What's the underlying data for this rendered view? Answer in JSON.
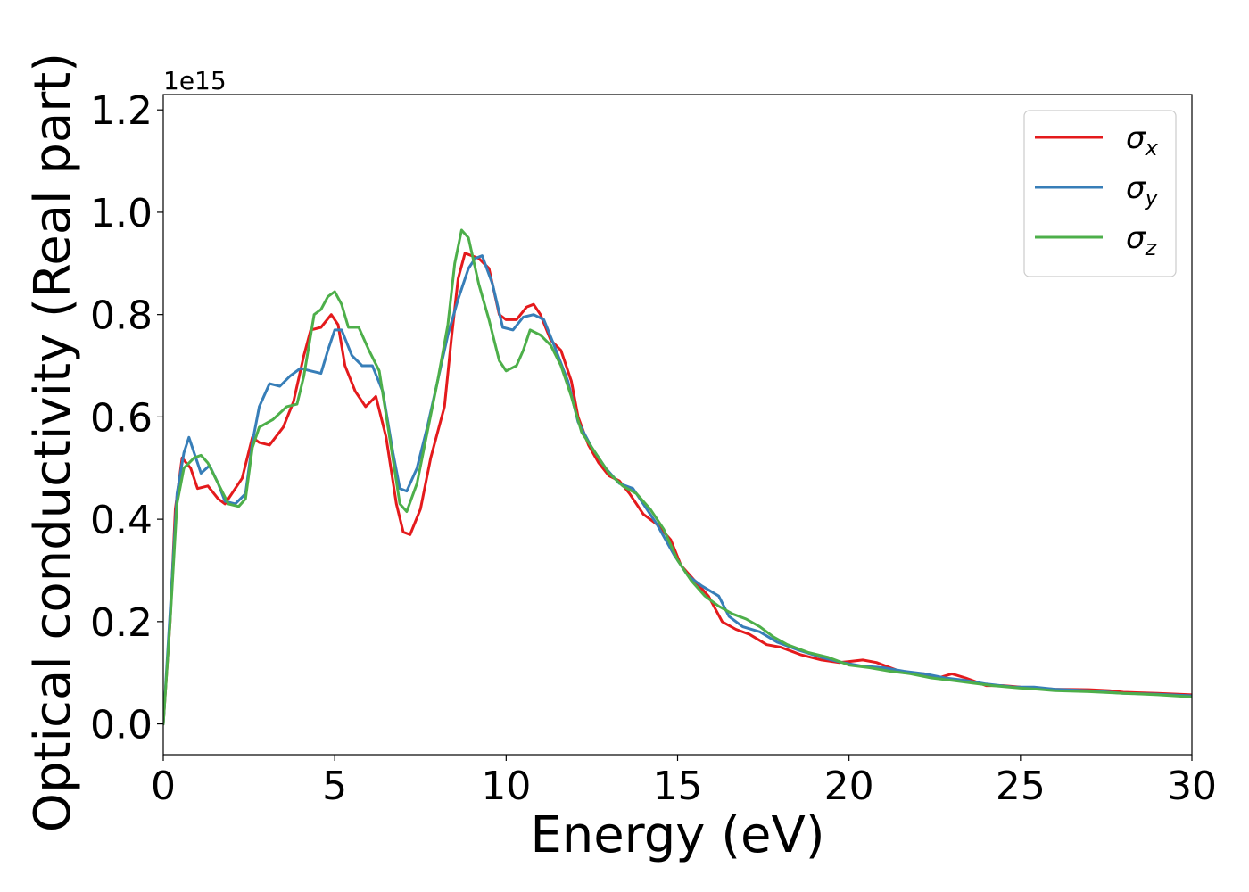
{
  "chart_data": {
    "type": "line",
    "title": "",
    "xlabel": "Energy (eV)",
    "ylabel": "Optical conductivity (Real part)",
    "y_offset_label": "1e15",
    "xlim": [
      0,
      30
    ],
    "ylim": [
      -0.06,
      1.23
    ],
    "x_ticks": [
      0,
      5,
      10,
      15,
      20,
      25,
      30
    ],
    "x_tick_labels": [
      "0",
      "5",
      "10",
      "15",
      "20",
      "25",
      "30"
    ],
    "y_ticks": [
      0.0,
      0.2,
      0.4,
      0.6,
      0.8,
      1.0,
      1.2
    ],
    "y_tick_labels": [
      "0.0",
      "0.2",
      "0.4",
      "0.6",
      "0.8",
      "1.0",
      "1.2"
    ],
    "grid": false,
    "legend_position": "top-right",
    "series": [
      {
        "name": "σx",
        "sym": "σ",
        "sub": "x",
        "color": "#e41a1c",
        "points": [
          [
            0,
            0
          ],
          [
            0.2,
            0.2
          ],
          [
            0.35,
            0.42
          ],
          [
            0.55,
            0.52
          ],
          [
            0.8,
            0.5
          ],
          [
            1.0,
            0.46
          ],
          [
            1.3,
            0.465
          ],
          [
            1.6,
            0.44
          ],
          [
            1.8,
            0.43
          ],
          [
            2.1,
            0.46
          ],
          [
            2.3,
            0.48
          ],
          [
            2.6,
            0.56
          ],
          [
            2.8,
            0.55
          ],
          [
            3.1,
            0.545
          ],
          [
            3.5,
            0.58
          ],
          [
            3.8,
            0.63
          ],
          [
            4.1,
            0.72
          ],
          [
            4.3,
            0.77
          ],
          [
            4.6,
            0.775
          ],
          [
            4.9,
            0.8
          ],
          [
            5.1,
            0.78
          ],
          [
            5.3,
            0.7
          ],
          [
            5.6,
            0.65
          ],
          [
            5.9,
            0.62
          ],
          [
            6.2,
            0.64
          ],
          [
            6.5,
            0.56
          ],
          [
            6.8,
            0.43
          ],
          [
            7.0,
            0.375
          ],
          [
            7.2,
            0.37
          ],
          [
            7.5,
            0.42
          ],
          [
            7.8,
            0.52
          ],
          [
            8.2,
            0.62
          ],
          [
            8.4,
            0.75
          ],
          [
            8.6,
            0.87
          ],
          [
            8.8,
            0.92
          ],
          [
            9.2,
            0.91
          ],
          [
            9.5,
            0.89
          ],
          [
            9.8,
            0.8
          ],
          [
            10.0,
            0.79
          ],
          [
            10.3,
            0.79
          ],
          [
            10.6,
            0.815
          ],
          [
            10.8,
            0.82
          ],
          [
            11.0,
            0.8
          ],
          [
            11.3,
            0.75
          ],
          [
            11.6,
            0.73
          ],
          [
            11.9,
            0.67
          ],
          [
            12.1,
            0.6
          ],
          [
            12.4,
            0.545
          ],
          [
            12.7,
            0.51
          ],
          [
            13.0,
            0.485
          ],
          [
            13.3,
            0.475
          ],
          [
            13.6,
            0.45
          ],
          [
            14.0,
            0.41
          ],
          [
            14.4,
            0.39
          ],
          [
            14.8,
            0.36
          ],
          [
            15.1,
            0.31
          ],
          [
            15.5,
            0.28
          ],
          [
            15.9,
            0.25
          ],
          [
            16.3,
            0.2
          ],
          [
            16.7,
            0.185
          ],
          [
            17.1,
            0.175
          ],
          [
            17.6,
            0.155
          ],
          [
            18.0,
            0.15
          ],
          [
            18.6,
            0.135
          ],
          [
            19.2,
            0.125
          ],
          [
            19.7,
            0.12
          ],
          [
            20.0,
            0.122
          ],
          [
            20.4,
            0.125
          ],
          [
            20.8,
            0.12
          ],
          [
            21.2,
            0.11
          ],
          [
            21.6,
            0.1
          ],
          [
            22.2,
            0.098
          ],
          [
            22.6,
            0.09
          ],
          [
            23.0,
            0.098
          ],
          [
            23.4,
            0.09
          ],
          [
            24.0,
            0.075
          ],
          [
            24.5,
            0.075
          ],
          [
            25.0,
            0.072
          ],
          [
            25.5,
            0.07
          ],
          [
            26.0,
            0.068
          ],
          [
            27.0,
            0.067
          ],
          [
            27.6,
            0.065
          ],
          [
            28.0,
            0.062
          ],
          [
            29.0,
            0.06
          ],
          [
            30.0,
            0.057
          ]
        ]
      },
      {
        "name": "σy",
        "sym": "σ",
        "sub": "y",
        "color": "#377eb8",
        "points": [
          [
            0,
            0
          ],
          [
            0.2,
            0.22
          ],
          [
            0.4,
            0.45
          ],
          [
            0.6,
            0.53
          ],
          [
            0.75,
            0.56
          ],
          [
            0.9,
            0.53
          ],
          [
            1.1,
            0.49
          ],
          [
            1.35,
            0.505
          ],
          [
            1.6,
            0.47
          ],
          [
            1.8,
            0.435
          ],
          [
            2.1,
            0.43
          ],
          [
            2.4,
            0.45
          ],
          [
            2.6,
            0.55
          ],
          [
            2.8,
            0.62
          ],
          [
            3.1,
            0.665
          ],
          [
            3.4,
            0.66
          ],
          [
            3.7,
            0.68
          ],
          [
            4.0,
            0.695
          ],
          [
            4.3,
            0.69
          ],
          [
            4.6,
            0.685
          ],
          [
            4.8,
            0.73
          ],
          [
            5.0,
            0.77
          ],
          [
            5.2,
            0.77
          ],
          [
            5.5,
            0.72
          ],
          [
            5.8,
            0.7
          ],
          [
            6.1,
            0.7
          ],
          [
            6.4,
            0.65
          ],
          [
            6.7,
            0.53
          ],
          [
            6.9,
            0.46
          ],
          [
            7.1,
            0.455
          ],
          [
            7.4,
            0.5
          ],
          [
            7.7,
            0.58
          ],
          [
            8.0,
            0.67
          ],
          [
            8.3,
            0.76
          ],
          [
            8.6,
            0.83
          ],
          [
            8.9,
            0.89
          ],
          [
            9.1,
            0.91
          ],
          [
            9.3,
            0.915
          ],
          [
            9.6,
            0.86
          ],
          [
            9.9,
            0.775
          ],
          [
            10.2,
            0.77
          ],
          [
            10.5,
            0.795
          ],
          [
            10.8,
            0.8
          ],
          [
            11.1,
            0.79
          ],
          [
            11.4,
            0.74
          ],
          [
            11.8,
            0.67
          ],
          [
            12.1,
            0.59
          ],
          [
            12.5,
            0.54
          ],
          [
            12.9,
            0.5
          ],
          [
            13.3,
            0.47
          ],
          [
            13.7,
            0.46
          ],
          [
            14.0,
            0.43
          ],
          [
            14.4,
            0.39
          ],
          [
            14.9,
            0.33
          ],
          [
            15.3,
            0.29
          ],
          [
            15.7,
            0.27
          ],
          [
            16.2,
            0.25
          ],
          [
            16.5,
            0.21
          ],
          [
            16.9,
            0.19
          ],
          [
            17.4,
            0.18
          ],
          [
            17.9,
            0.16
          ],
          [
            18.5,
            0.145
          ],
          [
            19.2,
            0.13
          ],
          [
            19.8,
            0.12
          ],
          [
            20.4,
            0.113
          ],
          [
            21.0,
            0.11
          ],
          [
            21.6,
            0.103
          ],
          [
            22.2,
            0.098
          ],
          [
            22.8,
            0.09
          ],
          [
            23.4,
            0.085
          ],
          [
            24.0,
            0.078
          ],
          [
            24.8,
            0.072
          ],
          [
            25.4,
            0.072
          ],
          [
            26.0,
            0.068
          ],
          [
            27.0,
            0.065
          ],
          [
            28.0,
            0.06
          ],
          [
            29.0,
            0.058
          ],
          [
            30.0,
            0.055
          ]
        ]
      },
      {
        "name": "σz",
        "sym": "σ",
        "sub": "z",
        "color": "#4daf4a",
        "points": [
          [
            0,
            0
          ],
          [
            0.2,
            0.2
          ],
          [
            0.4,
            0.43
          ],
          [
            0.6,
            0.5
          ],
          [
            0.9,
            0.52
          ],
          [
            1.1,
            0.525
          ],
          [
            1.3,
            0.51
          ],
          [
            1.6,
            0.47
          ],
          [
            1.9,
            0.43
          ],
          [
            2.2,
            0.425
          ],
          [
            2.4,
            0.44
          ],
          [
            2.6,
            0.54
          ],
          [
            2.8,
            0.58
          ],
          [
            3.2,
            0.595
          ],
          [
            3.6,
            0.62
          ],
          [
            3.9,
            0.625
          ],
          [
            4.1,
            0.68
          ],
          [
            4.4,
            0.8
          ],
          [
            4.6,
            0.81
          ],
          [
            4.8,
            0.835
          ],
          [
            5.0,
            0.845
          ],
          [
            5.2,
            0.82
          ],
          [
            5.4,
            0.775
          ],
          [
            5.7,
            0.775
          ],
          [
            6.0,
            0.73
          ],
          [
            6.3,
            0.69
          ],
          [
            6.6,
            0.56
          ],
          [
            6.9,
            0.43
          ],
          [
            7.1,
            0.415
          ],
          [
            7.4,
            0.47
          ],
          [
            7.7,
            0.57
          ],
          [
            8.0,
            0.67
          ],
          [
            8.3,
            0.78
          ],
          [
            8.5,
            0.9
          ],
          [
            8.7,
            0.965
          ],
          [
            8.9,
            0.95
          ],
          [
            9.2,
            0.86
          ],
          [
            9.5,
            0.79
          ],
          [
            9.8,
            0.71
          ],
          [
            10.0,
            0.69
          ],
          [
            10.3,
            0.7
          ],
          [
            10.5,
            0.73
          ],
          [
            10.7,
            0.77
          ],
          [
            11.0,
            0.76
          ],
          [
            11.3,
            0.74
          ],
          [
            11.6,
            0.7
          ],
          [
            11.9,
            0.64
          ],
          [
            12.2,
            0.57
          ],
          [
            12.6,
            0.53
          ],
          [
            13.0,
            0.49
          ],
          [
            13.4,
            0.465
          ],
          [
            13.8,
            0.45
          ],
          [
            14.2,
            0.42
          ],
          [
            14.6,
            0.38
          ],
          [
            15.0,
            0.32
          ],
          [
            15.4,
            0.28
          ],
          [
            15.8,
            0.25
          ],
          [
            16.2,
            0.23
          ],
          [
            16.6,
            0.215
          ],
          [
            17.0,
            0.205
          ],
          [
            17.4,
            0.19
          ],
          [
            17.8,
            0.17
          ],
          [
            18.2,
            0.155
          ],
          [
            18.8,
            0.14
          ],
          [
            19.4,
            0.13
          ],
          [
            20.0,
            0.115
          ],
          [
            20.6,
            0.11
          ],
          [
            21.2,
            0.103
          ],
          [
            21.8,
            0.098
          ],
          [
            22.4,
            0.09
          ],
          [
            23.0,
            0.085
          ],
          [
            23.6,
            0.08
          ],
          [
            24.2,
            0.075
          ],
          [
            25.0,
            0.07
          ],
          [
            25.5,
            0.068
          ],
          [
            26.0,
            0.065
          ],
          [
            27.0,
            0.063
          ],
          [
            28.0,
            0.06
          ],
          [
            29.0,
            0.057
          ],
          [
            30.0,
            0.053
          ]
        ]
      }
    ]
  }
}
